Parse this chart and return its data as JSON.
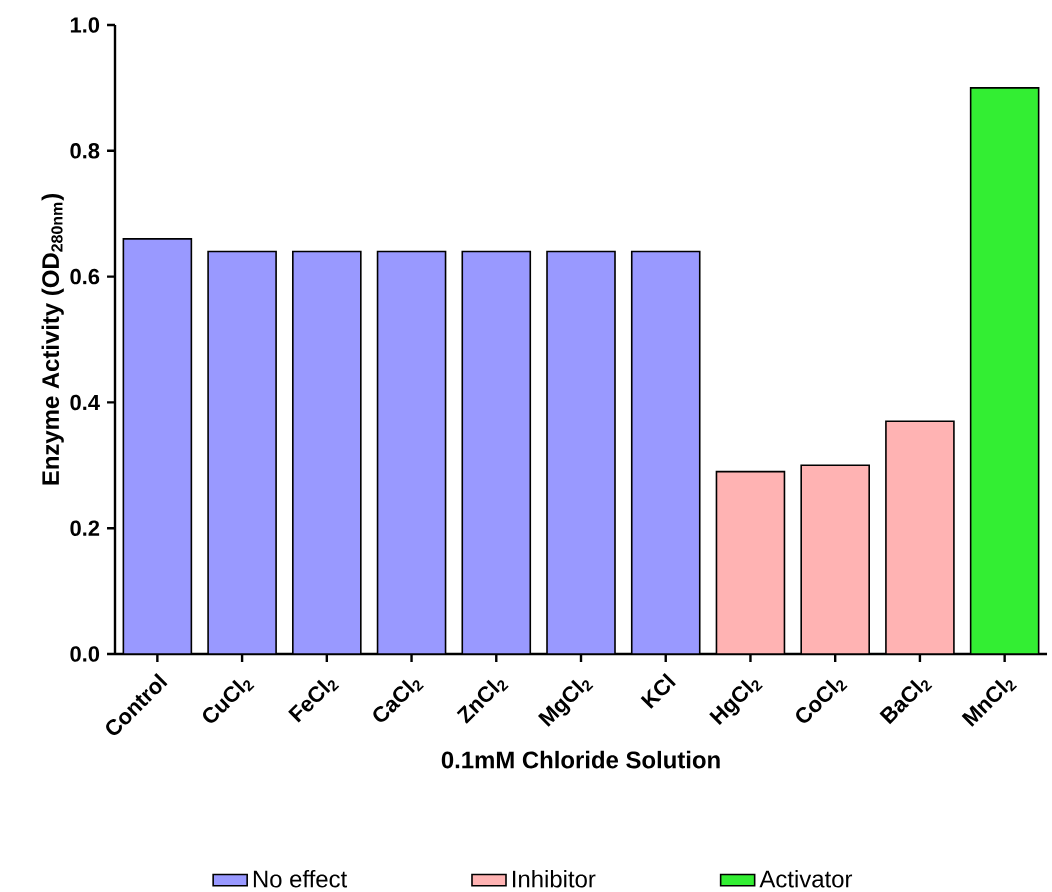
{
  "chart_data": {
    "type": "bar",
    "xlabel": "0.1mM Chloride Solution",
    "ylabel": "Enzyme Activity (OD$_{280nm}$)",
    "categories": [
      "Control",
      "CuCl$_{2}$",
      "FeCl$_{2}$",
      "CaCl$_{2}$",
      "ZnCl$_{2}$",
      "MgCl$_{2}$",
      "KCl",
      "HgCl$_{2}$",
      "CoCl$_{2}$",
      "BaCl$_{2}$",
      "MnCl$_{2}$"
    ],
    "series": [
      {
        "name": "No effect",
        "color": "#9999ff",
        "values": [
          0.66,
          0.64,
          0.64,
          0.64,
          0.64,
          0.64,
          0.64,
          null,
          null,
          null,
          null
        ]
      },
      {
        "name": "Inhibitor",
        "color": "#ffb3b3",
        "values": [
          null,
          null,
          null,
          null,
          null,
          null,
          null,
          0.29,
          0.3,
          0.37,
          null
        ]
      },
      {
        "name": "Activator",
        "color": "#33ee33",
        "values": [
          null,
          null,
          null,
          null,
          null,
          null,
          null,
          null,
          null,
          null,
          0.9
        ]
      }
    ],
    "ylim": [
      0,
      1.0
    ],
    "yticks": [
      {
        "value": 0,
        "label": "0.0"
      },
      {
        "value": 0.2,
        "label": "0.2"
      },
      {
        "value": 0.4,
        "label": "0.4"
      },
      {
        "value": 0.6,
        "label": "0.6"
      },
      {
        "value": 0.8,
        "label": "0.8"
      },
      {
        "value": 1.0,
        "label": "1.0"
      }
    ],
    "legend": "bottom"
  }
}
